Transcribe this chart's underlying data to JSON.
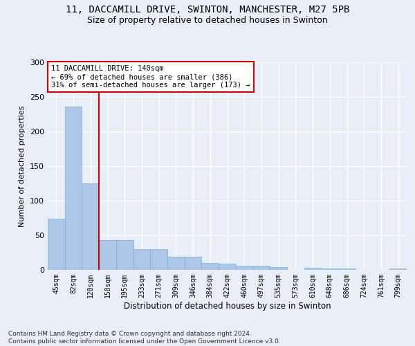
{
  "title1": "11, DACCAMILL DRIVE, SWINTON, MANCHESTER, M27 5PB",
  "title2": "Size of property relative to detached houses in Swinton",
  "xlabel": "Distribution of detached houses by size in Swinton",
  "ylabel": "Number of detached properties",
  "categories": [
    "45sqm",
    "82sqm",
    "120sqm",
    "158sqm",
    "195sqm",
    "233sqm",
    "271sqm",
    "309sqm",
    "346sqm",
    "384sqm",
    "422sqm",
    "460sqm",
    "497sqm",
    "535sqm",
    "573sqm",
    "610sqm",
    "648sqm",
    "686sqm",
    "724sqm",
    "761sqm",
    "799sqm"
  ],
  "values": [
    74,
    236,
    125,
    43,
    43,
    30,
    30,
    19,
    19,
    10,
    9,
    6,
    6,
    4,
    0,
    3,
    2,
    2,
    0,
    0,
    2
  ],
  "bar_color": "#aec6e8",
  "bar_edge_color": "#7aafd4",
  "vline_x": 2.5,
  "vline_color": "#cc0000",
  "annotation_text": "11 DACCAMILL DRIVE: 140sqm\n← 69% of detached houses are smaller (386)\n31% of semi-detached houses are larger (173) →",
  "annotation_box_color": "#ffffff",
  "annotation_box_edge": "#cc0000",
  "ylim": [
    0,
    300
  ],
  "yticks": [
    0,
    50,
    100,
    150,
    200,
    250,
    300
  ],
  "footer": "Contains HM Land Registry data © Crown copyright and database right 2024.\nContains public sector information licensed under the Open Government Licence v3.0.",
  "bg_color": "#e8eef7",
  "grid_color": "#ffffff",
  "title1_fontsize": 10,
  "title2_fontsize": 9
}
